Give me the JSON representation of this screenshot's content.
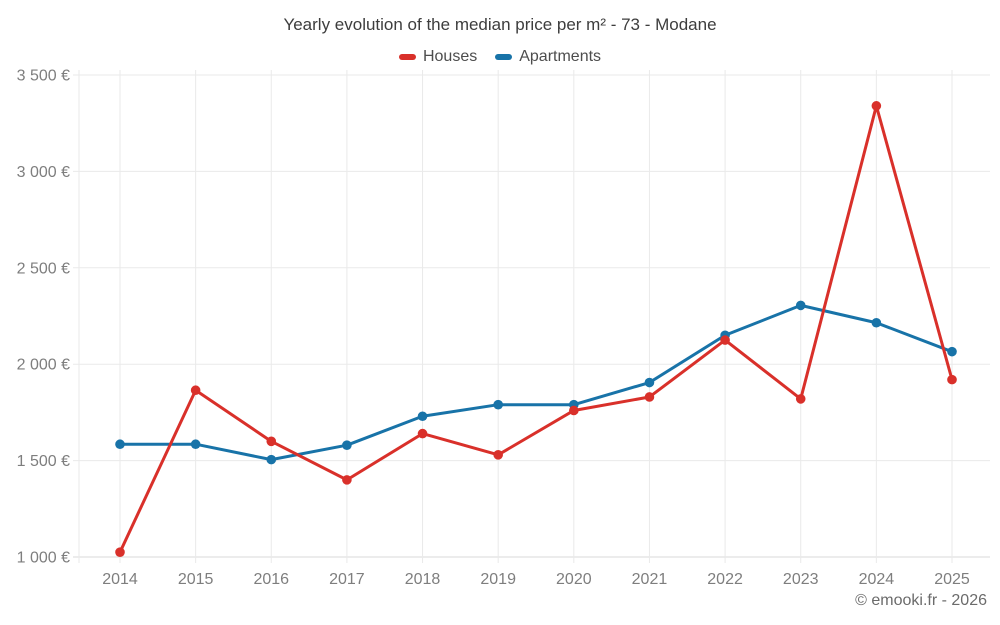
{
  "title": "Yearly evolution of the median price per m² - 73 - Modane",
  "legend": {
    "items": [
      {
        "label": "Houses",
        "color": "#d9302a"
      },
      {
        "label": "Apartments",
        "color": "#1873a8"
      }
    ]
  },
  "footer": {
    "credit": "© emooki.fr - 2026"
  },
  "colors": {
    "houses": "#d9302a",
    "apartments": "#1873a8",
    "grid": "#eaeaea",
    "axis": "#d8d8d8",
    "tick_label": "#7e7e7e",
    "title_text": "#3d3d3d",
    "legend_text": "#4d4d4d",
    "credit_text": "#6b6b6b"
  },
  "chart_data": {
    "type": "line",
    "title": "Yearly evolution of the median price per m² - 73 - Modane",
    "x": [
      2014,
      2015,
      2016,
      2017,
      2018,
      2019,
      2020,
      2021,
      2022,
      2023,
      2024,
      2025
    ],
    "series": [
      {
        "name": "Houses",
        "color": "#d9302a",
        "values": [
          1025,
          1865,
          1600,
          1400,
          1640,
          1530,
          1760,
          1830,
          2125,
          1820,
          3340,
          1920
        ]
      },
      {
        "name": "Apartments",
        "color": "#1873a8",
        "values": [
          1585,
          1585,
          1505,
          1580,
          1730,
          1790,
          1790,
          1905,
          2150,
          2305,
          2215,
          2065
        ]
      }
    ],
    "xlabel": "",
    "ylabel": "",
    "ylim": [
      1000,
      3500
    ],
    "ytick_step": 500,
    "yticks": [
      {
        "value": 1000,
        "label": "1 000 €"
      },
      {
        "value": 1500,
        "label": "1 500 €"
      },
      {
        "value": 2000,
        "label": "2 000 €"
      },
      {
        "value": 2500,
        "label": "2 500 €"
      },
      {
        "value": 3000,
        "label": "3 000 €"
      },
      {
        "value": 3500,
        "label": "3 500 €"
      }
    ],
    "grid": true,
    "legend_position": "top",
    "credit": "© emooki.fr - 2026"
  }
}
